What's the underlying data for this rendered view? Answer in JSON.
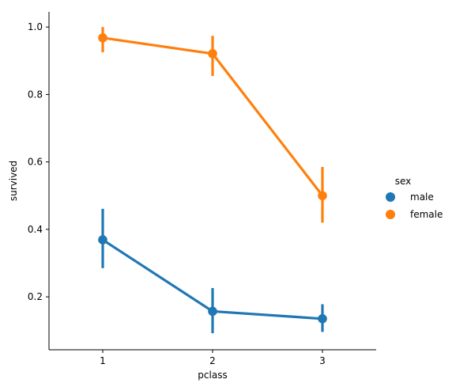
{
  "chart_data": {
    "type": "line",
    "xlabel": "pclass",
    "ylabel": "survived",
    "categories": [
      "1",
      "2",
      "3"
    ],
    "ylim": [
      0.043,
      1.045
    ],
    "yticks": [
      0.2,
      0.4,
      0.6,
      0.8,
      1.0
    ],
    "ytick_labels": [
      "0.2",
      "0.4",
      "0.6",
      "0.8",
      "1.0"
    ],
    "grid": false,
    "legend": {
      "title": "sex",
      "placement": "right"
    },
    "series": [
      {
        "name": "male",
        "color": "#1f77b4",
        "values": [
          0.369,
          0.157,
          0.135
        ],
        "ci_low": [
          0.285,
          0.092,
          0.096
        ],
        "ci_high": [
          0.461,
          0.226,
          0.178
        ]
      },
      {
        "name": "female",
        "color": "#ff7f0e",
        "values": [
          0.968,
          0.921,
          0.5
        ],
        "ci_low": [
          0.925,
          0.855,
          0.42
        ],
        "ci_high": [
          1.0,
          0.974,
          0.585
        ]
      }
    ]
  }
}
